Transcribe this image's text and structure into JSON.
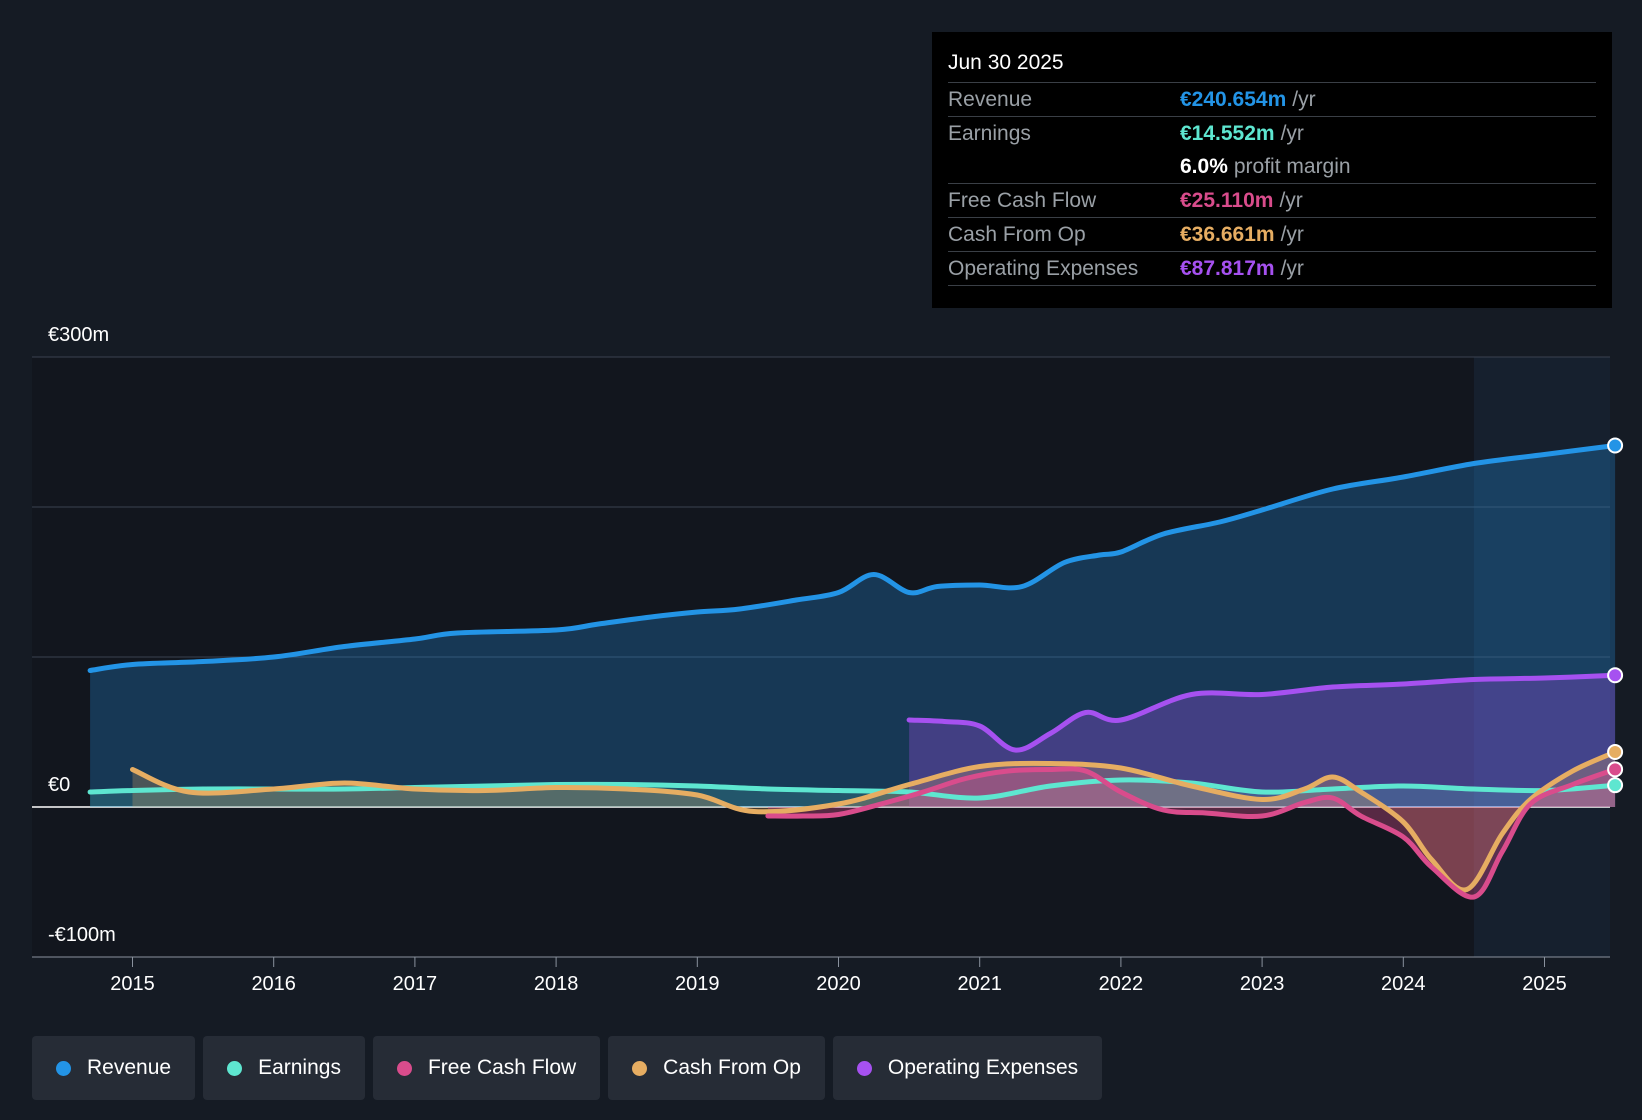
{
  "chart_data": {
    "type": "line",
    "title": "",
    "xlabel": "",
    "ylabel": "",
    "ylim": [
      -100,
      300
    ],
    "y_axis_labels": [
      "€300m",
      "€0",
      "-€100m"
    ],
    "x_ticks": [
      2015,
      2016,
      2017,
      2018,
      2019,
      2020,
      2021,
      2022,
      2023,
      2024,
      2025
    ],
    "x_tick_labels": [
      "2015",
      "2016",
      "2017",
      "2018",
      "2019",
      "2020",
      "2021",
      "2022",
      "2023",
      "2024",
      "2025"
    ],
    "x_range": [
      2014.3,
      2025.5
    ],
    "highlight_start": 2024.5,
    "series": [
      {
        "name": "Revenue",
        "color": "#2394e6",
        "fill": true,
        "end_marker": true,
        "points": [
          [
            2014.7,
            91
          ],
          [
            2015.0,
            95
          ],
          [
            2015.5,
            97
          ],
          [
            2016.0,
            100
          ],
          [
            2016.5,
            107
          ],
          [
            2017.0,
            112
          ],
          [
            2017.3,
            116
          ],
          [
            2018.0,
            118
          ],
          [
            2018.3,
            122
          ],
          [
            2018.7,
            127
          ],
          [
            2019.0,
            130
          ],
          [
            2019.3,
            132
          ],
          [
            2019.7,
            138
          ],
          [
            2020.0,
            143
          ],
          [
            2020.25,
            155
          ],
          [
            2020.5,
            143
          ],
          [
            2020.7,
            147
          ],
          [
            2021.0,
            148
          ],
          [
            2021.3,
            147
          ],
          [
            2021.6,
            163
          ],
          [
            2021.85,
            168
          ],
          [
            2022.0,
            170
          ],
          [
            2022.3,
            182
          ],
          [
            2022.7,
            190
          ],
          [
            2023.0,
            198
          ],
          [
            2023.5,
            212
          ],
          [
            2024.0,
            220
          ],
          [
            2024.5,
            229
          ],
          [
            2025.0,
            235
          ],
          [
            2025.5,
            241
          ]
        ]
      },
      {
        "name": "Earnings",
        "color": "#5ee6d0",
        "fill": true,
        "end_marker": true,
        "points": [
          [
            2014.7,
            10
          ],
          [
            2015.0,
            11
          ],
          [
            2015.5,
            12
          ],
          [
            2016.0,
            12
          ],
          [
            2016.5,
            12
          ],
          [
            2017.0,
            13
          ],
          [
            2017.5,
            14
          ],
          [
            2018.0,
            15
          ],
          [
            2018.5,
            15
          ],
          [
            2019.0,
            14
          ],
          [
            2019.5,
            12
          ],
          [
            2020.0,
            11
          ],
          [
            2020.5,
            10
          ],
          [
            2021.0,
            6
          ],
          [
            2021.5,
            14
          ],
          [
            2022.0,
            18
          ],
          [
            2022.5,
            16
          ],
          [
            2023.0,
            10
          ],
          [
            2023.5,
            12
          ],
          [
            2024.0,
            14
          ],
          [
            2024.5,
            12
          ],
          [
            2025.0,
            11
          ],
          [
            2025.5,
            14.552
          ]
        ]
      },
      {
        "name": "Free Cash Flow",
        "color": "#d94c8c",
        "fill": true,
        "end_marker": true,
        "points": [
          [
            2019.5,
            -6
          ],
          [
            2019.75,
            -6
          ],
          [
            2020.0,
            -5
          ],
          [
            2020.3,
            2
          ],
          [
            2020.6,
            10
          ],
          [
            2020.9,
            19
          ],
          [
            2021.2,
            24
          ],
          [
            2021.5,
            25
          ],
          [
            2021.75,
            24
          ],
          [
            2022.0,
            10
          ],
          [
            2022.3,
            -2
          ],
          [
            2022.6,
            -4
          ],
          [
            2023.0,
            -6
          ],
          [
            2023.3,
            3
          ],
          [
            2023.5,
            6
          ],
          [
            2023.7,
            -6
          ],
          [
            2024.0,
            -20
          ],
          [
            2024.2,
            -40
          ],
          [
            2024.5,
            -60
          ],
          [
            2024.7,
            -30
          ],
          [
            2024.9,
            2
          ],
          [
            2025.2,
            15
          ],
          [
            2025.5,
            25.11
          ]
        ]
      },
      {
        "name": "Cash From Op",
        "color": "#e6ad62",
        "fill": true,
        "end_marker": true,
        "points": [
          [
            2015.0,
            25
          ],
          [
            2015.4,
            10
          ],
          [
            2016.0,
            12
          ],
          [
            2016.5,
            16
          ],
          [
            2017.0,
            12
          ],
          [
            2017.5,
            11
          ],
          [
            2018.0,
            13
          ],
          [
            2018.5,
            12
          ],
          [
            2019.0,
            8
          ],
          [
            2019.4,
            -3
          ],
          [
            2020.0,
            2
          ],
          [
            2020.5,
            15
          ],
          [
            2021.0,
            27
          ],
          [
            2021.5,
            29
          ],
          [
            2022.0,
            26
          ],
          [
            2022.5,
            14
          ],
          [
            2023.0,
            5
          ],
          [
            2023.3,
            12
          ],
          [
            2023.5,
            20
          ],
          [
            2023.7,
            10
          ],
          [
            2024.0,
            -10
          ],
          [
            2024.2,
            -35
          ],
          [
            2024.45,
            -55
          ],
          [
            2024.7,
            -18
          ],
          [
            2024.9,
            5
          ],
          [
            2025.2,
            24
          ],
          [
            2025.5,
            36.661
          ]
        ]
      },
      {
        "name": "Operating Expenses",
        "color": "#a651f0",
        "fill": true,
        "end_marker": true,
        "points": [
          [
            2020.5,
            58
          ],
          [
            2020.75,
            57
          ],
          [
            2021.0,
            54
          ],
          [
            2021.25,
            38
          ],
          [
            2021.5,
            49
          ],
          [
            2021.75,
            63
          ],
          [
            2022.0,
            58
          ],
          [
            2022.5,
            75
          ],
          [
            2023.0,
            75
          ],
          [
            2023.5,
            80
          ],
          [
            2024.0,
            82
          ],
          [
            2024.5,
            85
          ],
          [
            2025.0,
            86
          ],
          [
            2025.5,
            87.817
          ]
        ]
      }
    ]
  },
  "tooltip": {
    "date": "Jun 30 2025",
    "rows": [
      {
        "label": "Revenue",
        "value": "€240.654m",
        "unit": "/yr",
        "color": "#2394e6"
      },
      {
        "label": "Earnings",
        "value": "€14.552m",
        "unit": "/yr",
        "color": "#5ee6d0"
      },
      {
        "label": "",
        "value": "6.0%",
        "unit": "profit margin",
        "color": "#ffffff"
      },
      {
        "label": "Free Cash Flow",
        "value": "€25.110m",
        "unit": "/yr",
        "color": "#d94c8c"
      },
      {
        "label": "Cash From Op",
        "value": "€36.661m",
        "unit": "/yr",
        "color": "#e6ad62"
      },
      {
        "label": "Operating Expenses",
        "value": "€87.817m",
        "unit": "/yr",
        "color": "#a651f0"
      }
    ]
  },
  "legend": [
    {
      "label": "Revenue",
      "color": "#2394e6"
    },
    {
      "label": "Earnings",
      "color": "#5ee6d0"
    },
    {
      "label": "Free Cash Flow",
      "color": "#d94c8c"
    },
    {
      "label": "Cash From Op",
      "color": "#e6ad62"
    },
    {
      "label": "Operating Expenses",
      "color": "#a651f0"
    }
  ]
}
